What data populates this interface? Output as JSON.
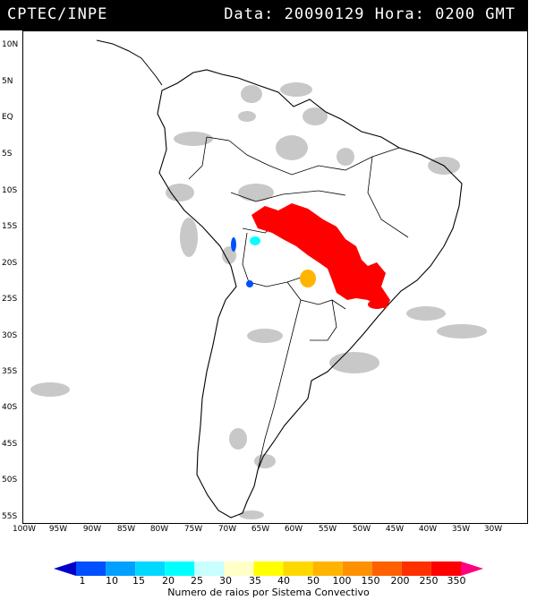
{
  "header": {
    "source": "CPTEC/INPE",
    "datetime": "Data: 20090129 Hora: 0200 GMT"
  },
  "map": {
    "lat_labels": [
      "10N",
      "5N",
      "EQ",
      "5S",
      "10S",
      "15S",
      "20S",
      "25S",
      "30S",
      "35S",
      "40S",
      "45S",
      "50S",
      "55S"
    ],
    "lon_labels": [
      "100W",
      "95W",
      "90W",
      "85W",
      "80W",
      "75W",
      "70W",
      "65W",
      "60W",
      "55W",
      "50W",
      "45W",
      "40W",
      "35W",
      "30W"
    ]
  },
  "colorbar": {
    "labels": [
      "1",
      "10",
      "15",
      "20",
      "25",
      "30",
      "35",
      "40",
      "50",
      "100",
      "150",
      "200",
      "250",
      "350"
    ],
    "colors": [
      "#0000c8",
      "#0050ff",
      "#00a0ff",
      "#00d8ff",
      "#00ffff",
      "#c8ffff",
      "#ffffc8",
      "#ffff00",
      "#ffd800",
      "#ffb400",
      "#ff9000",
      "#ff6000",
      "#ff3000",
      "#ff0000",
      "#ff0080"
    ],
    "title": "Numero de raios por Sistema Convectivo"
  }
}
